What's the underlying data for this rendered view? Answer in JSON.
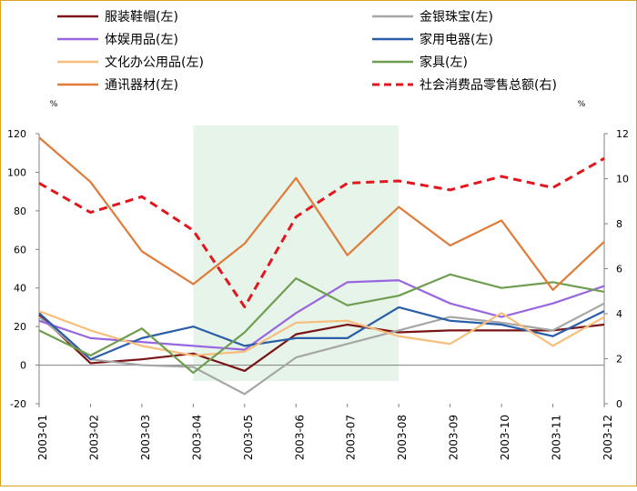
{
  "chart_data": {
    "type": "line",
    "title": "",
    "categories": [
      "2003-01",
      "2003-02",
      "2003-03",
      "2003-04",
      "2003-05",
      "2003-06",
      "2003-07",
      "2003-08",
      "2003-09",
      "2003-10",
      "2003-11",
      "2003-12"
    ],
    "left_axis": {
      "unit": "%",
      "min": -20,
      "max": 120,
      "ticks": [
        -20,
        0,
        20,
        40,
        60,
        80,
        100,
        120
      ]
    },
    "right_axis": {
      "unit": "%",
      "min": 0,
      "max": 12,
      "ticks": [
        0,
        2,
        4,
        6,
        8,
        10,
        12
      ]
    },
    "shaded_region": {
      "from": "2003-04",
      "to": "2003-08",
      "color": "#e6f4ea"
    },
    "series": [
      {
        "name": "服装鞋帽(左)",
        "axis": "left",
        "color": "#7b1416",
        "dash": false,
        "values": [
          26,
          1,
          3,
          6,
          -3,
          16,
          21,
          17,
          18,
          18,
          18,
          21
        ]
      },
      {
        "name": "金银珠宝(左)",
        "axis": "left",
        "color": "#a6a6a6",
        "dash": false,
        "values": [
          25,
          3,
          0,
          -1,
          -15,
          4,
          11,
          18,
          25,
          22,
          18,
          32
        ]
      },
      {
        "name": "体娱用品(左)",
        "axis": "left",
        "color": "#9966e0",
        "dash": false,
        "values": [
          23,
          14,
          12,
          10,
          8,
          27,
          43,
          44,
          32,
          25,
          32,
          41
        ]
      },
      {
        "name": "家用电器(左)",
        "axis": "left",
        "color": "#2a5ea6",
        "dash": false,
        "values": [
          27,
          3,
          14,
          20,
          10,
          14,
          14,
          30,
          23,
          21,
          15,
          28
        ]
      },
      {
        "name": "文化办公用品(左)",
        "axis": "left",
        "color": "#f7be7c",
        "dash": false,
        "values": [
          28,
          18,
          10,
          5,
          7,
          22,
          23,
          15,
          11,
          27,
          10,
          25
        ]
      },
      {
        "name": "家具(左)",
        "axis": "left",
        "color": "#6f9e50",
        "dash": false,
        "values": [
          18,
          5,
          19,
          -4,
          17,
          45,
          31,
          36,
          47,
          40,
          43,
          38
        ]
      },
      {
        "name": "通讯器材(左)",
        "axis": "left",
        "color": "#e07b39",
        "dash": false,
        "values": [
          118,
          95,
          59,
          42,
          63,
          97,
          57,
          82,
          62,
          75,
          39,
          64
        ]
      },
      {
        "name": "社会消费品零售总额(右)",
        "axis": "right",
        "color": "#e3161d",
        "dash": true,
        "values": [
          9.8,
          8.5,
          9.2,
          7.7,
          4.3,
          8.3,
          9.8,
          9.9,
          9.5,
          10.1,
          9.6,
          10.9
        ]
      }
    ]
  }
}
